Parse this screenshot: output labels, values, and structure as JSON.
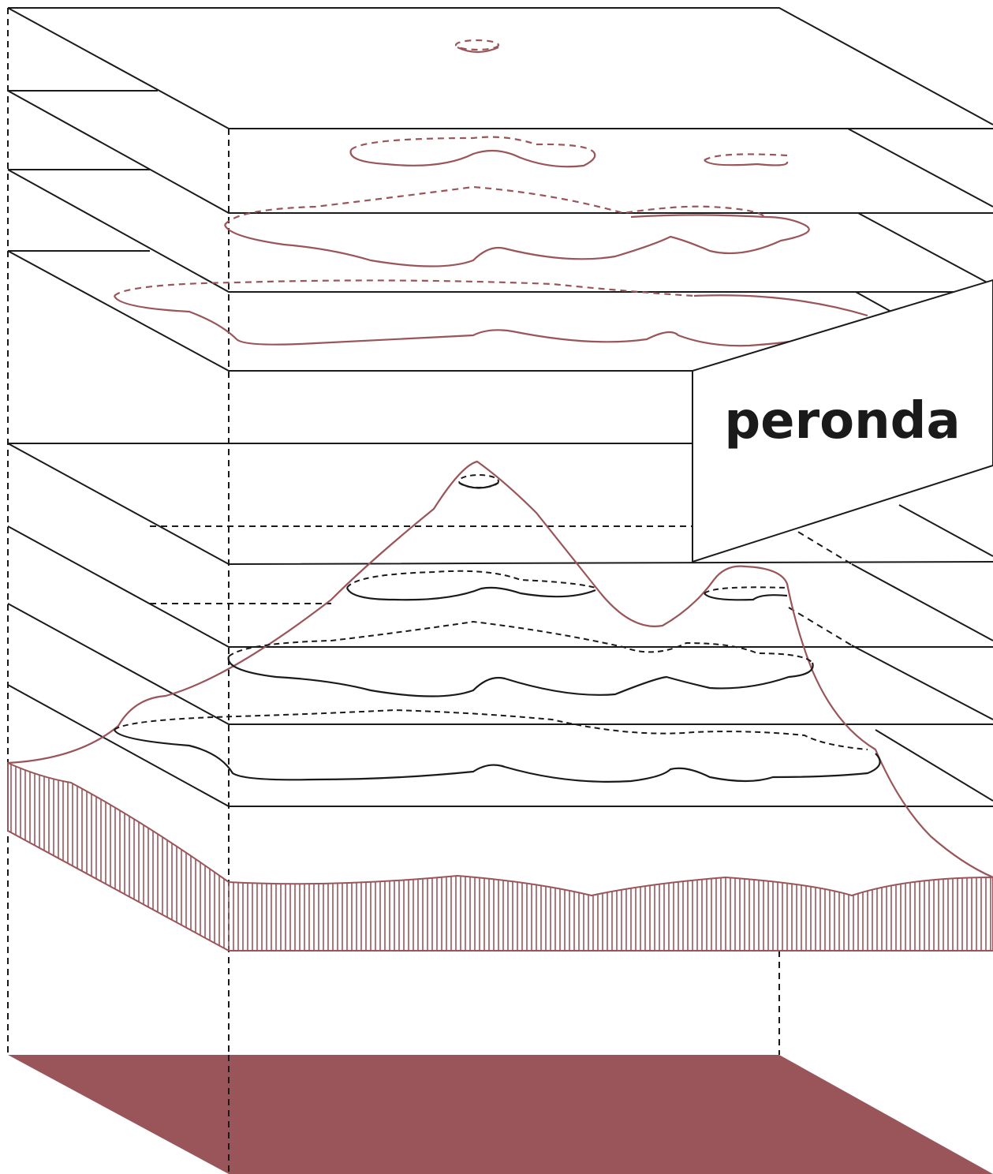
{
  "label": "peronda"
}
